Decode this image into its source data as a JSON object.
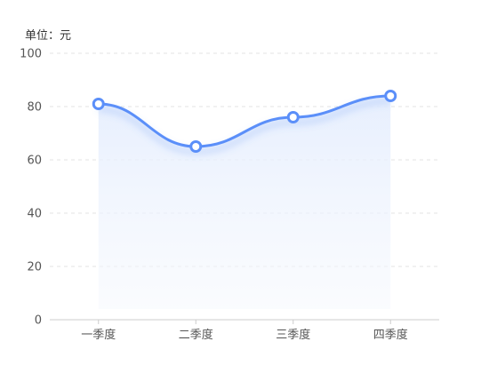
{
  "chart_data": {
    "type": "line",
    "unit_label": "单位：元",
    "categories": [
      "一季度",
      "二季度",
      "三季度",
      "四季度"
    ],
    "series": [
      {
        "values": [
          81,
          65,
          76,
          84
        ]
      }
    ],
    "ylim": [
      0,
      100
    ],
    "yticks": [
      0,
      20,
      40,
      60,
      80,
      100
    ],
    "smooth": true,
    "area_fill": true,
    "grid": "horizontal-dashed",
    "colors": {
      "line": "#5b8ff9",
      "grid": "#e3e3e3",
      "axis": "#cccccc",
      "tick_text": "#555555"
    }
  }
}
